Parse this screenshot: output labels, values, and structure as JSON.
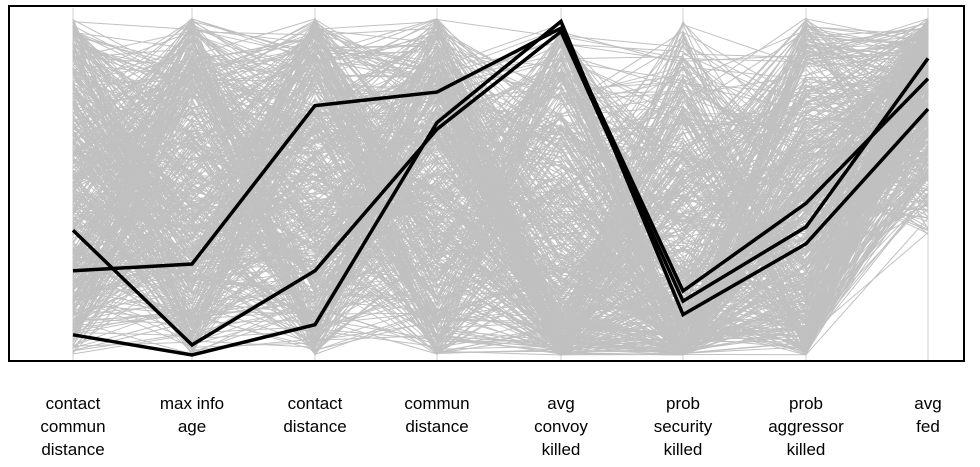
{
  "chart_data": {
    "type": "parallel-coordinates",
    "axes": [
      "contact commun distance",
      "max info age",
      "contact distance",
      "commun distance",
      "avg convoy killed",
      "prob security killed",
      "prob aggressor killed",
      "avg fed"
    ],
    "axis_label_lines": [
      [
        "contact",
        "commun",
        "distance"
      ],
      [
        "max info",
        "age"
      ],
      [
        "contact",
        "distance"
      ],
      [
        "commun",
        "distance"
      ],
      [
        "avg",
        "convoy",
        "killed"
      ],
      [
        "prob",
        "security",
        "killed"
      ],
      [
        "prob",
        "aggressor",
        "killed"
      ],
      [
        "avg",
        "fed"
      ]
    ],
    "value_range": [
      0,
      1
    ],
    "highlighted_series": [
      {
        "values": [
          0.06,
          0.0,
          0.09,
          0.69,
          0.99,
          0.12,
          0.33,
          0.73
        ]
      },
      {
        "values": [
          0.37,
          0.03,
          0.25,
          0.67,
          0.96,
          0.16,
          0.38,
          0.88
        ]
      },
      {
        "values": [
          0.25,
          0.27,
          0.74,
          0.78,
          0.97,
          0.19,
          0.45,
          0.82
        ]
      }
    ],
    "background_series_count": 500,
    "colors": {
      "background_lines": "#c0c0c0",
      "highlighted_lines": "#000000",
      "axis_lines": "#d8d8d8",
      "frame": "#000000"
    }
  }
}
